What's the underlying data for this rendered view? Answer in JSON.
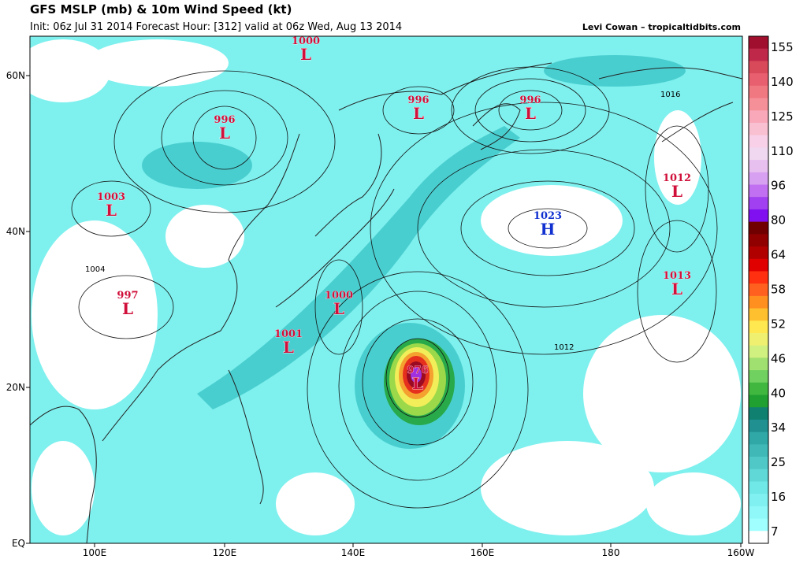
{
  "header": {
    "title": "GFS MSLP (mb) & 10m Wind Speed (kt)",
    "subtitle": "Init: 06z Jul 31 2014 Forecast Hour: [312] valid at 06z Wed, Aug 13 2014",
    "credit": "Levi Cowan – tropicaltidbits.com"
  },
  "axes": {
    "lon_labels": [
      "100E",
      "120E",
      "140E",
      "160E",
      "180",
      "160W"
    ],
    "lat_labels": [
      "EQ",
      "20N",
      "40N",
      "60N"
    ]
  },
  "colorbar": {
    "labels": [
      "155",
      "140",
      "125",
      "110",
      "96",
      "80",
      "64",
      "58",
      "52",
      "46",
      "40",
      "34",
      "25",
      "16",
      "7"
    ]
  },
  "pressure_centers": [
    {
      "value": "1000",
      "symbol": "L"
    },
    {
      "value": "996",
      "symbol": "L"
    },
    {
      "value": "1003",
      "symbol": "L"
    },
    {
      "value": "996",
      "symbol": "L"
    },
    {
      "value": "996",
      "symbol": "L"
    },
    {
      "value": "1012",
      "symbol": "L"
    },
    {
      "value": "1023",
      "symbol": "H"
    },
    {
      "value": "1013",
      "symbol": "L"
    },
    {
      "value": "997",
      "symbol": "L"
    },
    {
      "value": "1000",
      "symbol": "L"
    },
    {
      "value": "1001",
      "symbol": "L"
    },
    {
      "value": "976",
      "symbol": "L"
    }
  ],
  "isobar_labels": [
    "1016",
    "1004",
    "1012"
  ]
}
